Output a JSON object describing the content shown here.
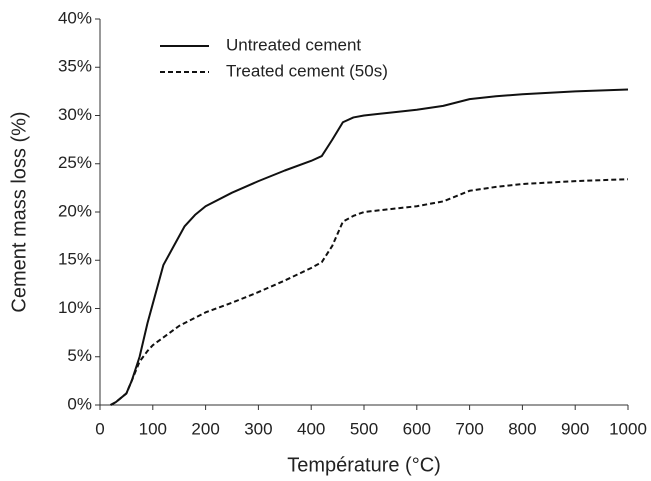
{
  "chart_data": {
    "type": "line",
    "xlabel": "Température (°C)",
    "ylabel": "Cement mass loss (%)",
    "xlim": [
      0,
      1000
    ],
    "xticks": [
      0,
      100,
      200,
      300,
      400,
      500,
      600,
      700,
      800,
      900,
      1000
    ],
    "ylim": [
      0,
      40
    ],
    "yticks": [
      {
        "value": 0,
        "label": "0%"
      },
      {
        "value": 5,
        "label": "5%"
      },
      {
        "value": 10,
        "label": "10%"
      },
      {
        "value": 15,
        "label": "15%"
      },
      {
        "value": 20,
        "label": "20%"
      },
      {
        "value": 25,
        "label": "25%"
      },
      {
        "value": 30,
        "label": "30%"
      },
      {
        "value": 35,
        "label": "35%"
      },
      {
        "value": 40,
        "label": "40%"
      }
    ],
    "grid": false,
    "legend": "upper left",
    "series": [
      {
        "name": "Untreated cement",
        "color": "#111111",
        "linestyle": "solid",
        "x": [
          20,
          30,
          50,
          60,
          75,
          90,
          100,
          120,
          140,
          160,
          180,
          200,
          250,
          300,
          350,
          400,
          420,
          440,
          460,
          480,
          500,
          550,
          600,
          650,
          700,
          750,
          800,
          900,
          1000
        ],
        "values": [
          0,
          0.3,
          1.2,
          2.5,
          5,
          8.5,
          10.5,
          14.5,
          16.5,
          18.5,
          19.7,
          20.6,
          22,
          23.2,
          24.3,
          25.3,
          25.8,
          27.5,
          29.3,
          29.8,
          30,
          30.3,
          30.6,
          31,
          31.7,
          32,
          32.2,
          32.5,
          32.7
        ]
      },
      {
        "name": "Treated cement (50s)",
        "color": "#111111",
        "linestyle": "dashed",
        "x": [
          20,
          30,
          50,
          60,
          75,
          90,
          100,
          120,
          150,
          200,
          250,
          300,
          350,
          400,
          420,
          440,
          460,
          480,
          500,
          550,
          600,
          650,
          700,
          750,
          800,
          900,
          1000
        ],
        "values": [
          0,
          0.3,
          1.2,
          2.5,
          4.5,
          5.6,
          6.2,
          7,
          8.2,
          9.6,
          10.6,
          11.7,
          12.9,
          14.2,
          14.8,
          16.5,
          19,
          19.6,
          20,
          20.3,
          20.6,
          21.1,
          22.2,
          22.6,
          22.9,
          23.2,
          23.4
        ]
      }
    ]
  }
}
